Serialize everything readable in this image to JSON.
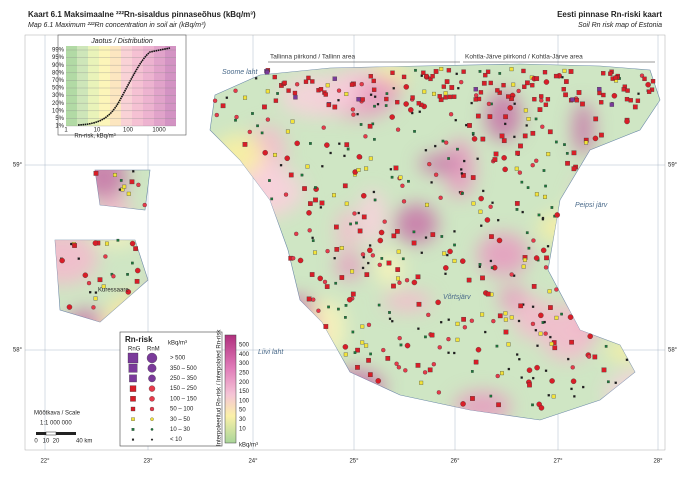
{
  "header": {
    "title_left": "Kaart 6.1 Maksimaalne ²²²Rn-sisaldus pinnaseõhus (kBq/m³)",
    "subtitle_left": "Map 6.1 Maximum ²²²Rn concentration in soil air (kBq/m³)",
    "title_right": "Eesti pinnase Rn-riski kaart",
    "subtitle_right": "Soil Rn risk map of Estonia"
  },
  "inset": {
    "title": "Jaotus / Distribution",
    "y_labels": [
      "99%",
      "95%",
      "90%",
      "80%",
      "70%",
      "50%",
      "30%",
      "20%",
      "10%",
      "5%",
      "1%"
    ],
    "x_labels": [
      "1",
      "10",
      "100",
      "1000"
    ],
    "x_title": "Rn-risk, kBq/m³"
  },
  "places": {
    "gulf": "Soome laht",
    "tallinn": "Tallinna piirkond / Tallinn area",
    "kohtla": "Kohtla-Järve piirkond / Kohtla-Järve area",
    "peipsi": "Peipsi järv",
    "riga": "Liivi laht",
    "vorts": "Võrtsjärv",
    "saaremaa": "Kuressaare"
  },
  "latitudes": [
    "59°",
    "58°"
  ],
  "longitudes": [
    "22°",
    "23°",
    "24°",
    "25°",
    "26°",
    "27°",
    "28°"
  ],
  "legend": {
    "title": "Rn-risk",
    "col_g": "RnG",
    "col_m": "RnM",
    "unit": "kBq/m³",
    "classes": [
      "> 500",
      "350 – 500",
      "250 – 350",
      "150 – 250",
      "100 – 150",
      "50 – 100",
      "30 – 50",
      "10 – 30",
      "< 10"
    ],
    "bar_title": "Interpoleeritud Rn-risk / Interpolated Rn-risk",
    "bar_ticks": [
      "500",
      "400",
      "300",
      "250",
      "200",
      "150",
      "100",
      "50",
      "30",
      "10"
    ],
    "bar_unit": "kBq/m³"
  },
  "scale": {
    "title": "Mõõtkava / Scale",
    "ratio": "1:1 000 000",
    "ticks": [
      "0",
      "10",
      "20",
      "40 km"
    ]
  }
}
